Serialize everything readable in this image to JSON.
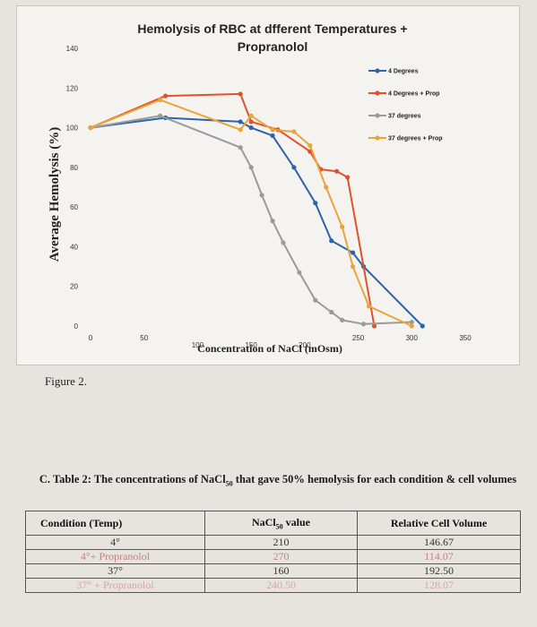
{
  "chart_data": {
    "type": "line",
    "title_line1": "Hemolysis of RBC at dfferent Temperatures +",
    "title_line2": "Propranolol",
    "xlabel": "Concentration of NaCl (mOsm)",
    "ylabel": "Average Hemolysis (%)",
    "xlim": [
      0,
      350
    ],
    "ylim": [
      0,
      140
    ],
    "x_ticks": [
      0,
      50,
      100,
      150,
      200,
      250,
      300,
      350
    ],
    "y_ticks": [
      0,
      20,
      40,
      60,
      80,
      100,
      120,
      140
    ],
    "legend_position": "top-right",
    "series": [
      {
        "name": "4 Degrees",
        "color": "#2e62ac",
        "points": [
          [
            0,
            100
          ],
          [
            70,
            105
          ],
          [
            140,
            103
          ],
          [
            150,
            100
          ],
          [
            170,
            96
          ],
          [
            190,
            80
          ],
          [
            210,
            62
          ],
          [
            225,
            43
          ],
          [
            245,
            37
          ],
          [
            255,
            30
          ],
          [
            310,
            0
          ]
        ]
      },
      {
        "name": "4 Degrees + Prop",
        "color": "#e0522a",
        "points": [
          [
            0,
            100
          ],
          [
            70,
            116
          ],
          [
            140,
            117
          ],
          [
            150,
            103
          ],
          [
            175,
            99
          ],
          [
            205,
            88
          ],
          [
            215,
            79
          ],
          [
            230,
            78
          ],
          [
            240,
            75
          ],
          [
            265,
            0
          ]
        ]
      },
      {
        "name": "37 degrees",
        "color": "#9a9a9a",
        "points": [
          [
            0,
            100
          ],
          [
            65,
            106
          ],
          [
            140,
            90
          ],
          [
            150,
            80
          ],
          [
            160,
            66
          ],
          [
            170,
            53
          ],
          [
            180,
            42
          ],
          [
            195,
            27
          ],
          [
            210,
            13
          ],
          [
            225,
            7
          ],
          [
            235,
            3
          ],
          [
            255,
            1
          ],
          [
            300,
            2
          ]
        ]
      },
      {
        "name": "37 degrees + Prop",
        "color": "#eba33c",
        "points": [
          [
            0,
            100
          ],
          [
            65,
            114
          ],
          [
            140,
            99
          ],
          [
            150,
            106
          ],
          [
            170,
            99
          ],
          [
            190,
            98
          ],
          [
            205,
            91
          ],
          [
            220,
            70
          ],
          [
            235,
            50
          ],
          [
            245,
            30
          ],
          [
            260,
            10
          ],
          [
            300,
            0
          ]
        ]
      }
    ]
  },
  "figure_caption": "Figure 2.",
  "table": {
    "caption_part1": "C. Table 2: The concentrations of NaCl",
    "caption_sub": "50",
    "caption_part2": " that gave 50% hemolysis for each condition & cell volumes",
    "headers": {
      "condition": "Condition (Temp)",
      "value_prefix": "NaCl",
      "value_sub": "50",
      "value_suffix": " value",
      "volume": "Relative Cell Volume"
    },
    "rows": [
      {
        "condition": "4°",
        "value": "210",
        "volume": "146.67"
      },
      {
        "condition": "4°+ Propranolol",
        "value": "270",
        "volume": "114.07"
      },
      {
        "condition": "37°",
        "value": "160",
        "volume": "192.50"
      },
      {
        "condition": "37° + Propranolol",
        "value": "240.50",
        "volume": "128.07"
      }
    ]
  }
}
